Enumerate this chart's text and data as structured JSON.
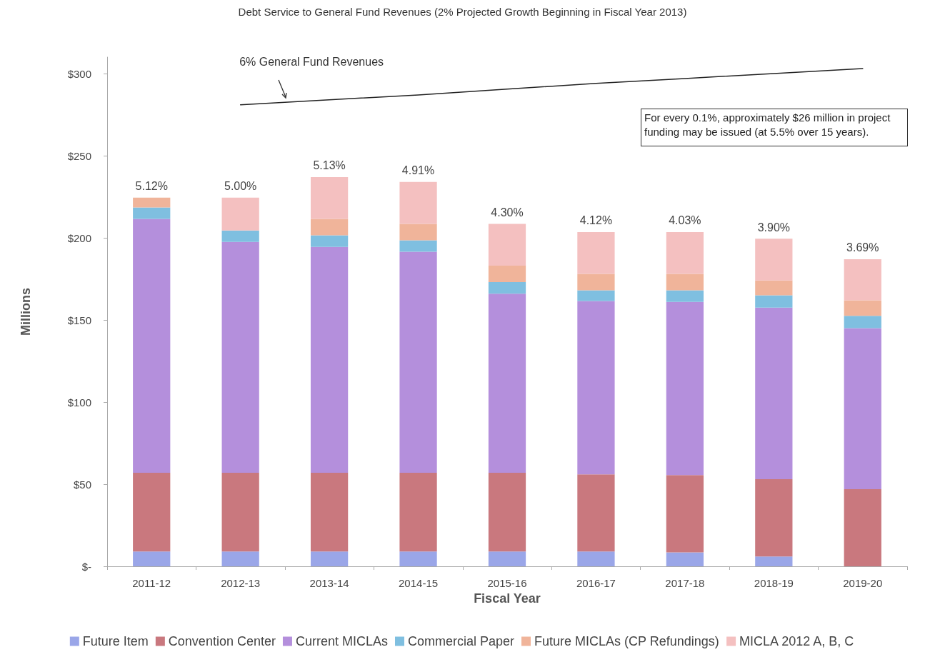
{
  "chart_data": {
    "type": "bar",
    "stacked": true,
    "title": "Debt Service to General Fund Revenues (2% Projected Growth Beginning in Fiscal Year 2013)",
    "xlabel": "Fiscal Year",
    "ylabel": "Millions",
    "categories": [
      "2011-12",
      "2012-13",
      "2013-14",
      "2014-15",
      "2015-16",
      "2016-17",
      "2017-18",
      "2018-19",
      "2019-20"
    ],
    "series": [
      {
        "name": "Future Item",
        "color": "#9aa6e8",
        "values": [
          9,
          9,
          9,
          9,
          9,
          9,
          8.5,
          6,
          0
        ]
      },
      {
        "name": "Convention Center",
        "color": "#c9787e",
        "values": [
          48,
          48,
          48,
          48,
          48,
          47,
          47,
          47,
          47
        ]
      },
      {
        "name": "Current MICLAs",
        "color": "#b48fdc",
        "values": [
          154.5,
          140.5,
          137.5,
          134.5,
          109,
          105.5,
          105.5,
          104.5,
          98
        ]
      },
      {
        "name": "Commercial Paper",
        "color": "#7fbfe0",
        "values": [
          7,
          7,
          7,
          7,
          7,
          6.5,
          7,
          7.5,
          7.5
        ]
      },
      {
        "name": "Future MICLAs (CP Refundings)",
        "color": "#f0b49a",
        "values": [
          6,
          0,
          10,
          10,
          10,
          10,
          10,
          9,
          9.5
        ]
      },
      {
        "name": "MICLA 2012 A, B, C",
        "color": "#f4c0c0",
        "values": [
          0,
          20,
          25.5,
          25.5,
          25.5,
          25.5,
          25.5,
          25.5,
          25
        ]
      },
      {
        "name": "6% General Fund Revenues",
        "type": "line",
        "color": "#222222",
        "values": [
          null,
          281,
          284,
          287,
          290.5,
          294,
          297,
          300,
          303
        ]
      }
    ],
    "ylim": [
      0,
      310
    ],
    "yticks": [
      {
        "value": 0,
        "label": "$-"
      },
      {
        "value": 50,
        "label": "$50"
      },
      {
        "value": 100,
        "label": "$100"
      },
      {
        "value": 150,
        "label": "$150"
      },
      {
        "value": 200,
        "label": "$200"
      },
      {
        "value": 250,
        "label": "$250"
      },
      {
        "value": 300,
        "label": "$300"
      }
    ],
    "annotations": [
      "For every 0.1%, approximately $26 million in project funding may be issued (at 5.5% over 15 years).",
      {
        "text": "5.12%",
        "x": "2011-12",
        "y": 224.5
      },
      {
        "text": "5.00%",
        "x": "2012-13",
        "y": 224.5
      },
      {
        "text": "5.13%",
        "x": "2013-14",
        "y": 237
      },
      {
        "text": "4.91%",
        "x": "2014-15",
        "y": 234
      },
      {
        "text": "4.30%",
        "x": "2015-16",
        "y": 208.5
      },
      {
        "text": "4.12%",
        "x": "2016-17",
        "y": 203.5
      },
      {
        "text": "4.03%",
        "x": "2017-18",
        "y": 203.5
      },
      {
        "text": "3.90%",
        "x": "2018-19",
        "y": 199.5
      },
      {
        "text": "3.69%",
        "x": "2019-20",
        "y": 187
      }
    ],
    "grid": false,
    "legend": "bottom",
    "marker": "none",
    "line_style": "solid"
  }
}
